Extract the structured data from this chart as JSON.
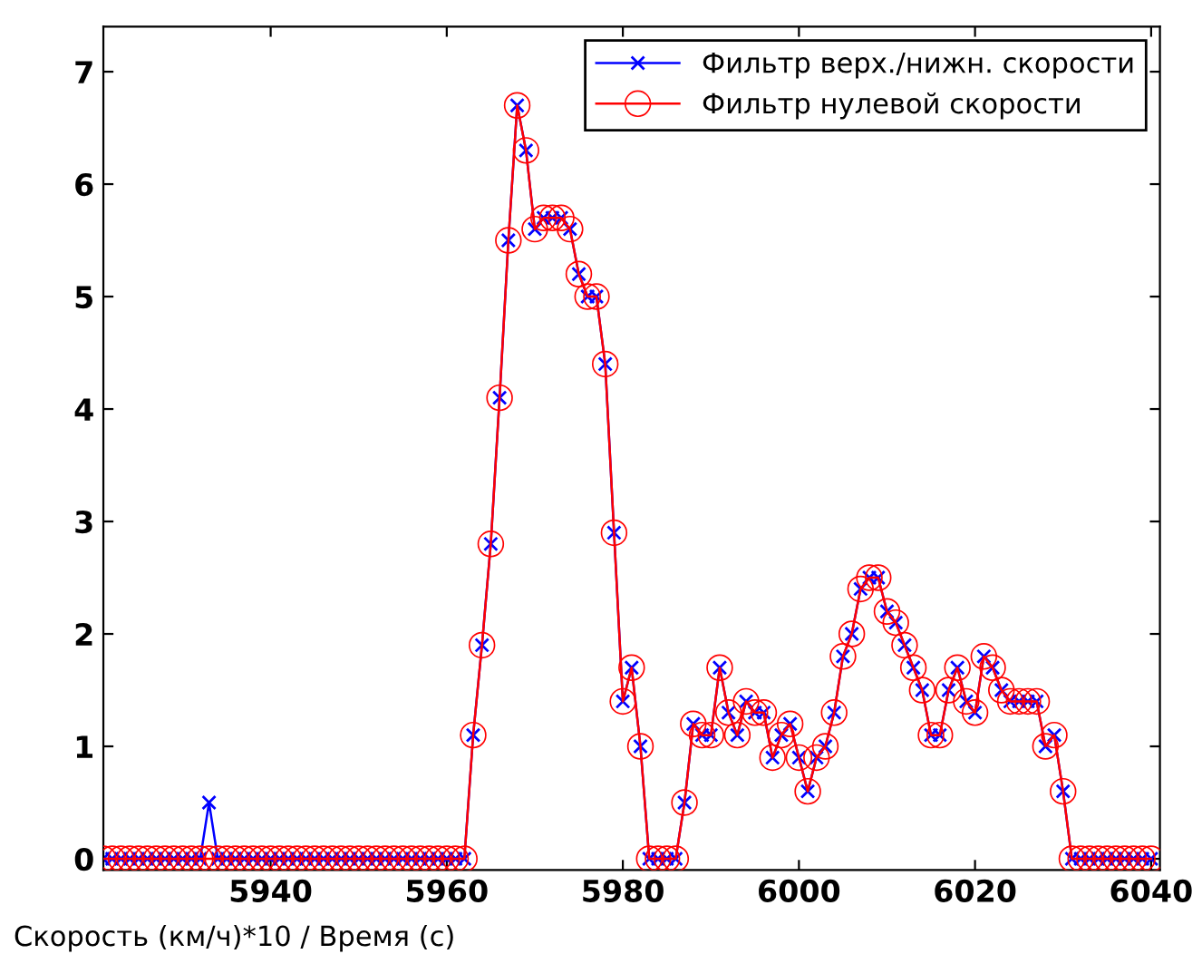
{
  "chart_data": {
    "type": "line",
    "xlabel": "Скорость (км/ч)*10 / Время (с)",
    "x": [
      5921,
      5922,
      5923,
      5924,
      5925,
      5926,
      5927,
      5928,
      5929,
      5930,
      5931,
      5932,
      5933,
      5934,
      5935,
      5936,
      5937,
      5938,
      5939,
      5940,
      5941,
      5942,
      5943,
      5944,
      5945,
      5946,
      5947,
      5948,
      5949,
      5950,
      5951,
      5952,
      5953,
      5954,
      5955,
      5956,
      5957,
      5958,
      5959,
      5960,
      5961,
      5962,
      5963,
      5964,
      5965,
      5966,
      5967,
      5968,
      5969,
      5970,
      5971,
      5972,
      5973,
      5974,
      5975,
      5976,
      5977,
      5978,
      5979,
      5980,
      5981,
      5982,
      5983,
      5984,
      5985,
      5986,
      5987,
      5988,
      5989,
      5990,
      5991,
      5992,
      5993,
      5994,
      5995,
      5996,
      5997,
      5998,
      5999,
      6000,
      6001,
      6002,
      6003,
      6004,
      6005,
      6006,
      6007,
      6008,
      6009,
      6010,
      6011,
      6012,
      6013,
      6014,
      6015,
      6016,
      6017,
      6018,
      6019,
      6020,
      6021,
      6022,
      6023,
      6024,
      6025,
      6026,
      6027,
      6028,
      6029,
      6030,
      6031,
      6032,
      6033,
      6034,
      6035,
      6036,
      6037,
      6038,
      6039,
      6040
    ],
    "series": [
      {
        "name": "Фильтр верх./нижн. скорости",
        "color": "#0000ff",
        "marker": "cross",
        "values": [
          0,
          0,
          0,
          0,
          0,
          0,
          0,
          0,
          0,
          0,
          0,
          0,
          0.5,
          0,
          0,
          0,
          0,
          0,
          0,
          0,
          0,
          0,
          0,
          0,
          0,
          0,
          0,
          0,
          0,
          0,
          0,
          0,
          0,
          0,
          0,
          0,
          0,
          0,
          0,
          0,
          0,
          0,
          1.1,
          1.9,
          2.8,
          4.1,
          5.5,
          6.7,
          6.3,
          5.6,
          5.7,
          5.7,
          5.7,
          5.6,
          5.2,
          5.0,
          5.0,
          4.4,
          2.9,
          1.4,
          1.7,
          1.0,
          0,
          0,
          0,
          0,
          0.5,
          1.2,
          1.1,
          1.1,
          1.7,
          1.3,
          1.1,
          1.4,
          1.3,
          1.3,
          0.9,
          1.1,
          1.2,
          0.9,
          0.6,
          0.9,
          1.0,
          1.3,
          1.8,
          2.0,
          2.4,
          2.5,
          2.5,
          2.2,
          2.1,
          1.9,
          1.7,
          1.5,
          1.1,
          1.1,
          1.5,
          1.7,
          1.4,
          1.3,
          1.8,
          1.7,
          1.5,
          1.4,
          1.4,
          1.4,
          1.4,
          1.0,
          1.1,
          0.6,
          0,
          0,
          0,
          0,
          0,
          0,
          0,
          0,
          0,
          0
        ]
      },
      {
        "name": "Фильтр нулевой скорости",
        "color": "#ff0000",
        "marker": "circle",
        "values": [
          0,
          0,
          0,
          0,
          0,
          0,
          0,
          0,
          0,
          0,
          0,
          0,
          0,
          0,
          0,
          0,
          0,
          0,
          0,
          0,
          0,
          0,
          0,
          0,
          0,
          0,
          0,
          0,
          0,
          0,
          0,
          0,
          0,
          0,
          0,
          0,
          0,
          0,
          0,
          0,
          0,
          0,
          1.1,
          1.9,
          2.8,
          4.1,
          5.5,
          6.7,
          6.3,
          5.6,
          5.7,
          5.7,
          5.7,
          5.6,
          5.2,
          5.0,
          5.0,
          4.4,
          2.9,
          1.4,
          1.7,
          1.0,
          0,
          0,
          0,
          0,
          0.5,
          1.2,
          1.1,
          1.1,
          1.7,
          1.3,
          1.1,
          1.4,
          1.3,
          1.3,
          0.9,
          1.1,
          1.2,
          0.9,
          0.6,
          0.9,
          1.0,
          1.3,
          1.8,
          2.0,
          2.4,
          2.5,
          2.5,
          2.2,
          2.1,
          1.9,
          1.7,
          1.5,
          1.1,
          1.1,
          1.5,
          1.7,
          1.4,
          1.3,
          1.8,
          1.7,
          1.5,
          1.4,
          1.4,
          1.4,
          1.4,
          1.0,
          1.1,
          0.6,
          0,
          0,
          0,
          0,
          0,
          0,
          0,
          0,
          0,
          0
        ]
      }
    ],
    "xlim": [
      5921,
      6041
    ],
    "ylim": [
      -0.1,
      7.4
    ],
    "xticks": [
      5940,
      5960,
      5980,
      6000,
      6020,
      6040
    ],
    "yticks": [
      0,
      1,
      2,
      3,
      4,
      5,
      6,
      7
    ],
    "grid": false,
    "legend": "top right"
  }
}
